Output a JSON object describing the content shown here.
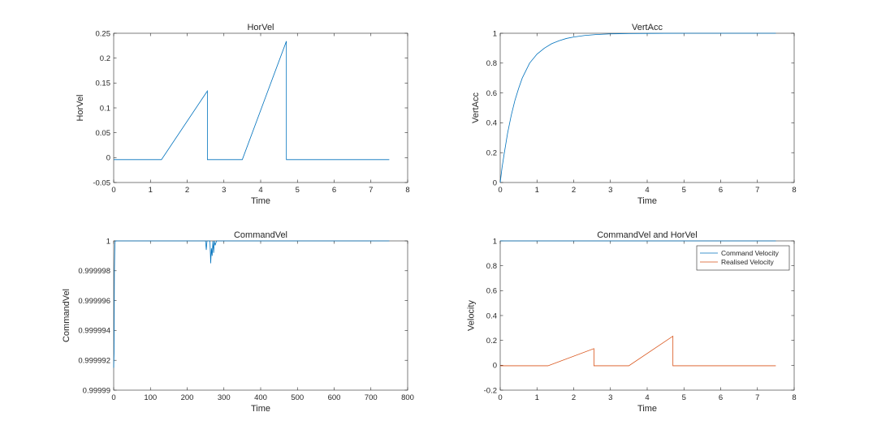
{
  "colors": {
    "blue": "#0072BD",
    "orange": "#D95319",
    "axis": "#262626",
    "box": "#262626"
  },
  "chart_data": [
    {
      "type": "line",
      "title": "HorVel",
      "xlabel": "Time",
      "ylabel": "HorVel",
      "xlim": [
        0,
        8
      ],
      "ylim": [
        -0.05,
        0.25
      ],
      "xticks": [
        0,
        1,
        2,
        3,
        4,
        5,
        6,
        7,
        8
      ],
      "yticks": [
        -0.05,
        0,
        0.05,
        0.1,
        0.15,
        0.2,
        0.25
      ],
      "ytick_labels": [
        "-0.05",
        "0",
        "0.05",
        "0.1",
        "0.15",
        "0.2",
        "0.25"
      ],
      "series": [
        {
          "color": "blue",
          "x": [
            0,
            1.3,
            2.55,
            2.55,
            3.5,
            4.7,
            4.7,
            7.5
          ],
          "y": [
            -0.004,
            -0.004,
            0.134,
            -0.004,
            -0.004,
            0.234,
            -0.004,
            -0.004
          ]
        }
      ]
    },
    {
      "type": "line",
      "title": "VertAcc",
      "xlabel": "Time",
      "ylabel": "VertAcc",
      "xlim": [
        0,
        8
      ],
      "ylim": [
        0,
        1
      ],
      "xticks": [
        0,
        1,
        2,
        3,
        4,
        5,
        6,
        7,
        8
      ],
      "yticks": [
        0,
        0.2,
        0.4,
        0.6,
        0.8,
        1
      ],
      "ytick_labels": [
        "0",
        "0.2",
        "0.4",
        "0.6",
        "0.8",
        "1"
      ],
      "series": [
        {
          "color": "blue",
          "x": [
            0,
            0.05,
            0.1,
            0.2,
            0.3,
            0.4,
            0.5,
            0.6,
            0.8,
            1.0,
            1.2,
            1.4,
            1.6,
            1.8,
            2.0,
            2.3,
            2.6,
            3.0,
            3.5,
            4.0,
            5.0,
            6.0,
            7.5
          ],
          "y": [
            0,
            0.1,
            0.18,
            0.33,
            0.45,
            0.55,
            0.63,
            0.7,
            0.8,
            0.86,
            0.9,
            0.93,
            0.95,
            0.965,
            0.975,
            0.985,
            0.991,
            0.996,
            0.998,
            0.999,
            1,
            1,
            1
          ]
        }
      ]
    },
    {
      "type": "line",
      "title": "CommandVel",
      "xlabel": "Time",
      "ylabel": "CommandVel",
      "xlim": [
        0,
        800
      ],
      "ylim": [
        0.99999,
        1
      ],
      "xticks": [
        0,
        100,
        200,
        300,
        400,
        500,
        600,
        700,
        800
      ],
      "yticks": [
        0.99999,
        0.999992,
        0.999994,
        0.999996,
        0.999998,
        1
      ],
      "ytick_labels": [
        "0.99999",
        "0.999992",
        "0.999994",
        "0.999996",
        "0.999998",
        "1"
      ],
      "series": [
        {
          "color": "blue",
          "x": [
            0,
            1,
            2,
            3,
            4,
            5,
            250,
            252,
            254,
            262,
            264,
            266,
            268,
            270,
            272,
            274,
            276,
            280,
            750
          ],
          "y": [
            0.9999915,
            0.9999925,
            0.999998,
            0.9999995,
            0.99999995,
            1,
            1,
            0.9999994,
            1,
            1,
            0.9999985,
            0.9999995,
            0.999999,
            1,
            0.9999992,
            1,
            0.9999997,
            1,
            1
          ]
        }
      ]
    },
    {
      "type": "line",
      "title": "CommandVel and HorVel",
      "xlabel": "Time",
      "ylabel": "Velocity",
      "xlim": [
        0,
        8
      ],
      "ylim": [
        -0.2,
        1
      ],
      "xticks": [
        0,
        1,
        2,
        3,
        4,
        5,
        6,
        7,
        8
      ],
      "yticks": [
        -0.2,
        0,
        0.2,
        0.4,
        0.6,
        0.8,
        1
      ],
      "ytick_labels": [
        "-0.2",
        "0",
        "0.2",
        "0.4",
        "0.6",
        "0.8",
        "1"
      ],
      "legend": "top-right",
      "series": [
        {
          "name": "Command Velocity",
          "color": "blue",
          "x": [
            0,
            7.5
          ],
          "y": [
            1,
            1
          ]
        },
        {
          "name": "Realised Velocity",
          "color": "orange",
          "x": [
            0,
            1.3,
            2.55,
            2.55,
            3.5,
            4.7,
            4.7,
            7.5
          ],
          "y": [
            -0.004,
            -0.004,
            0.134,
            -0.004,
            -0.004,
            0.234,
            -0.004,
            -0.004
          ]
        }
      ]
    }
  ]
}
